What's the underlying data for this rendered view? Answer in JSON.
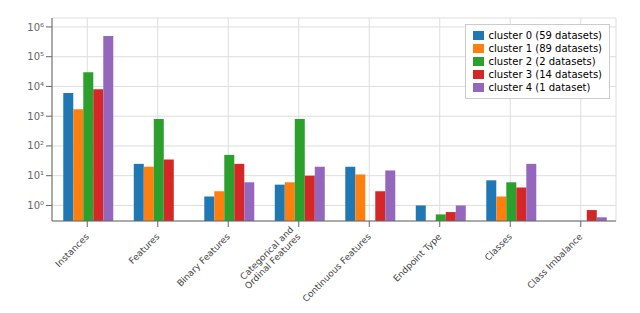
{
  "chart_data": {
    "type": "bar",
    "categories": [
      "Instances",
      "Features",
      "Binary Features",
      "Categorical and\nOrdinal Features",
      "Continuous Features",
      "Endpoint Type",
      "Classes",
      "Class Imbalance"
    ],
    "series": [
      {
        "name": "cluster 0 (59 datasets)",
        "color": "#1f77b4",
        "values": [
          6000,
          25,
          2,
          5,
          20,
          1,
          7,
          null
        ]
      },
      {
        "name": "cluster 1 (89 datasets)",
        "color": "#ff7f0e",
        "values": [
          1700,
          20,
          3,
          6,
          11,
          null,
          2,
          null
        ]
      },
      {
        "name": "cluster 2 (2 datasets)",
        "color": "#2ca02c",
        "values": [
          30000,
          800,
          50,
          800,
          null,
          0.5,
          6,
          null
        ]
      },
      {
        "name": "cluster 3 (14 datasets)",
        "color": "#d62728",
        "values": [
          8000,
          35,
          25,
          10,
          3,
          0.6,
          4,
          0.7
        ]
      },
      {
        "name": "cluster 4 (1 dataset)",
        "color": "#9467bd",
        "values": [
          500000,
          null,
          6,
          20,
          15,
          1,
          25,
          0.4
        ]
      }
    ],
    "ylim": [
      0.3,
      2000000
    ],
    "yticks": [
      {
        "value": 1,
        "label": "10⁰"
      },
      {
        "value": 10,
        "label": "10¹"
      },
      {
        "value": 100,
        "label": "10²"
      },
      {
        "value": 1000,
        "label": "10³"
      },
      {
        "value": 10000,
        "label": "10⁴"
      },
      {
        "value": 100000,
        "label": "10⁵"
      },
      {
        "value": 1000000,
        "label": "10⁶"
      }
    ],
    "log": "y",
    "grid": true,
    "legend": "upper right"
  }
}
